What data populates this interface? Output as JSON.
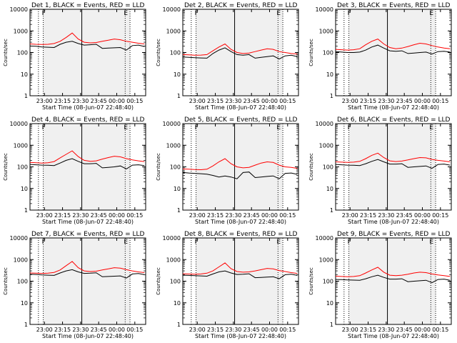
{
  "figure": {
    "time_labels": [
      "23:00",
      "23:15",
      "23:30",
      "23:45",
      "00:00",
      "00:15"
    ],
    "start_time_label": "Start Time (08-Jun-07 22:48:40)",
    "y_label": "Counts/sec",
    "y_ticks": [
      "1",
      "10",
      "100",
      "1000",
      "10000"
    ],
    "colors": {
      "events": "#000000",
      "lld": "#ff0000",
      "background": "#ffffff",
      "shading": "#f0f0f0"
    }
  },
  "chart_data": [
    {
      "type": "line",
      "title": "Det 1, BLACK = Events, RED = LLD",
      "yscale": "log",
      "ylim": [
        1,
        10000
      ],
      "x_minutes_after_start": [
        0,
        5,
        10,
        15,
        20,
        25,
        30,
        35,
        40,
        45,
        50,
        55,
        60,
        65,
        70,
        75,
        80,
        85,
        90,
        95
      ],
      "series": [
        {
          "name": "Events",
          "values": [
            200,
            195,
            180,
            175,
            170,
            240,
            300,
            330,
            260,
            220,
            230,
            240,
            155,
            160,
            165,
            170,
            130,
            210,
            220,
            190
          ]
        },
        {
          "name": "LLD",
          "values": [
            250,
            240,
            235,
            240,
            260,
            330,
            500,
            800,
            420,
            300,
            280,
            290,
            330,
            370,
            420,
            390,
            330,
            300,
            270,
            250
          ]
        }
      ],
      "markers": [
        {
          "x": 7,
          "style": "dotted"
        },
        {
          "x": 11,
          "style": "dotted",
          "label": "F"
        },
        {
          "x": 43,
          "style": "solid"
        },
        {
          "x": 79,
          "style": "dotted",
          "label": "E"
        },
        {
          "x": 83,
          "style": "dotted"
        }
      ]
    },
    {
      "type": "line",
      "title": "Det 2, BLACK = Events, RED = LLD",
      "yscale": "log",
      "ylim": [
        1,
        10000
      ],
      "x_minutes_after_start": [
        0,
        5,
        10,
        15,
        20,
        25,
        30,
        35,
        40,
        45,
        50,
        55,
        60,
        65,
        70,
        75,
        80,
        85,
        90,
        95
      ],
      "series": [
        {
          "name": "Events",
          "values": [
            62,
            60,
            58,
            56,
            55,
            90,
            130,
            165,
            110,
            80,
            75,
            80,
            55,
            60,
            65,
            70,
            50,
            70,
            75,
            65
          ]
        },
        {
          "name": "LLD",
          "values": [
            80,
            78,
            75,
            76,
            80,
            120,
            180,
            250,
            140,
            100,
            90,
            95,
            110,
            130,
            150,
            140,
            110,
            100,
            90,
            85
          ]
        }
      ],
      "markers": [
        {
          "x": 7,
          "style": "dotted"
        },
        {
          "x": 11,
          "style": "dotted",
          "label": "F"
        },
        {
          "x": 43,
          "style": "solid"
        },
        {
          "x": 79,
          "style": "dotted",
          "label": "E"
        },
        {
          "x": 83,
          "style": "dotted"
        }
      ]
    },
    {
      "type": "line",
      "title": "Det 3, BLACK = Events, RED = LLD",
      "yscale": "log",
      "ylim": [
        1,
        10000
      ],
      "x_minutes_after_start": [
        0,
        5,
        10,
        15,
        20,
        25,
        30,
        35,
        40,
        45,
        50,
        55,
        60,
        65,
        70,
        75,
        80,
        85,
        90,
        95
      ],
      "series": [
        {
          "name": "Events",
          "values": [
            110,
            105,
            100,
            100,
            105,
            130,
            180,
            220,
            160,
            120,
            115,
            120,
            90,
            95,
            100,
            105,
            85,
            110,
            115,
            105
          ]
        },
        {
          "name": "LLD",
          "values": [
            140,
            135,
            130,
            135,
            150,
            230,
            330,
            420,
            250,
            170,
            150,
            160,
            190,
            230,
            270,
            250,
            210,
            180,
            160,
            150
          ]
        }
      ],
      "markers": [
        {
          "x": 7,
          "style": "dotted"
        },
        {
          "x": 11,
          "style": "dotted",
          "label": "F"
        },
        {
          "x": 43,
          "style": "solid"
        },
        {
          "x": 79,
          "style": "dotted",
          "label": "E"
        },
        {
          "x": 83,
          "style": "dotted"
        }
      ]
    },
    {
      "type": "line",
      "title": "Det 4, BLACK = Events, RED = LLD",
      "yscale": "log",
      "ylim": [
        1,
        10000
      ],
      "x_minutes_after_start": [
        0,
        5,
        10,
        15,
        20,
        25,
        30,
        35,
        40,
        45,
        50,
        55,
        60,
        65,
        70,
        75,
        80,
        85,
        90,
        95
      ],
      "series": [
        {
          "name": "Events",
          "values": [
            130,
            125,
            120,
            118,
            115,
            150,
            200,
            240,
            180,
            140,
            140,
            145,
            90,
            95,
            100,
            110,
            80,
            120,
            125,
            115
          ]
        },
        {
          "name": "LLD",
          "values": [
            160,
            155,
            150,
            155,
            175,
            260,
            380,
            550,
            300,
            200,
            180,
            190,
            230,
            270,
            310,
            290,
            240,
            210,
            190,
            175
          ]
        }
      ],
      "markers": [
        {
          "x": 7,
          "style": "dotted"
        },
        {
          "x": 11,
          "style": "dotted",
          "label": "F"
        },
        {
          "x": 43,
          "style": "solid"
        },
        {
          "x": 79,
          "style": "dotted",
          "label": "E"
        },
        {
          "x": 83,
          "style": "dotted"
        }
      ]
    },
    {
      "type": "line",
      "title": "Det 5, BLACK = Events, RED = LLD",
      "yscale": "log",
      "ylim": [
        1,
        10000
      ],
      "x_minutes_after_start": [
        0,
        5,
        10,
        15,
        20,
        25,
        30,
        35,
        40,
        45,
        50,
        55,
        60,
        65,
        70,
        75,
        80,
        85,
        90,
        95
      ],
      "series": [
        {
          "name": "Events",
          "values": [
            55,
            52,
            50,
            48,
            46,
            40,
            34,
            38,
            34,
            28,
            55,
            58,
            32,
            34,
            36,
            38,
            28,
            50,
            52,
            45
          ]
        },
        {
          "name": "LLD",
          "values": [
            80,
            78,
            75,
            74,
            78,
            110,
            170,
            240,
            140,
            100,
            90,
            95,
            120,
            150,
            170,
            160,
            120,
            100,
            95,
            85
          ]
        }
      ],
      "markers": [
        {
          "x": 7,
          "style": "dotted"
        },
        {
          "x": 11,
          "style": "dotted",
          "label": "F"
        },
        {
          "x": 43,
          "style": "solid"
        },
        {
          "x": 79,
          "style": "dotted",
          "label": "E"
        },
        {
          "x": 83,
          "style": "dotted"
        }
      ]
    },
    {
      "type": "line",
      "title": "Det 6, BLACK = Events, RED = LLD",
      "yscale": "log",
      "ylim": [
        1,
        10000
      ],
      "x_minutes_after_start": [
        0,
        5,
        10,
        15,
        20,
        25,
        30,
        35,
        40,
        45,
        50,
        55,
        60,
        65,
        70,
        75,
        80,
        85,
        90,
        95
      ],
      "series": [
        {
          "name": "Events",
          "values": [
            130,
            125,
            120,
            118,
            115,
            140,
            180,
            220,
            170,
            135,
            135,
            140,
            95,
            100,
            105,
            110,
            85,
            130,
            135,
            120
          ]
        },
        {
          "name": "LLD",
          "values": [
            170,
            165,
            160,
            165,
            180,
            240,
            340,
            430,
            270,
            190,
            175,
            185,
            210,
            240,
            270,
            260,
            220,
            200,
            185,
            170
          ]
        }
      ],
      "markers": [
        {
          "x": 7,
          "style": "dotted"
        },
        {
          "x": 11,
          "style": "dotted",
          "label": "F"
        },
        {
          "x": 43,
          "style": "solid"
        },
        {
          "x": 79,
          "style": "dotted",
          "label": "E"
        },
        {
          "x": 83,
          "style": "dotted"
        }
      ]
    },
    {
      "type": "line",
      "title": "Det 7, BLACK = Events, RED = LLD",
      "yscale": "log",
      "ylim": [
        1,
        10000
      ],
      "x_minutes_after_start": [
        0,
        5,
        10,
        15,
        20,
        25,
        30,
        35,
        40,
        45,
        50,
        55,
        60,
        65,
        70,
        75,
        80,
        85,
        90,
        95
      ],
      "series": [
        {
          "name": "Events",
          "values": [
            210,
            205,
            195,
            190,
            185,
            240,
            300,
            340,
            270,
            230,
            235,
            245,
            160,
            165,
            170,
            175,
            140,
            215,
            225,
            200
          ]
        },
        {
          "name": "LLD",
          "values": [
            240,
            235,
            230,
            235,
            255,
            330,
            520,
            820,
            420,
            300,
            280,
            290,
            330,
            370,
            420,
            400,
            340,
            300,
            270,
            250
          ]
        }
      ],
      "markers": [
        {
          "x": 7,
          "style": "dotted"
        },
        {
          "x": 11,
          "style": "dotted",
          "label": "F"
        },
        {
          "x": 43,
          "style": "solid"
        },
        {
          "x": 79,
          "style": "dotted",
          "label": "E"
        },
        {
          "x": 83,
          "style": "dotted"
        }
      ]
    },
    {
      "type": "line",
      "title": "Det 8, BLACK = Events, RED = LLD",
      "yscale": "log",
      "ylim": [
        1,
        10000
      ],
      "x_minutes_after_start": [
        0,
        5,
        10,
        15,
        20,
        25,
        30,
        35,
        40,
        45,
        50,
        55,
        60,
        65,
        70,
        75,
        80,
        85,
        90,
        95
      ],
      "series": [
        {
          "name": "Events",
          "values": [
            190,
            185,
            180,
            175,
            170,
            215,
            270,
            300,
            240,
            205,
            210,
            220,
            145,
            150,
            155,
            160,
            130,
            200,
            210,
            185
          ]
        },
        {
          "name": "LLD",
          "values": [
            220,
            215,
            210,
            215,
            235,
            300,
            460,
            700,
            380,
            280,
            260,
            270,
            300,
            340,
            390,
            370,
            310,
            280,
            250,
            230
          ]
        }
      ],
      "markers": [
        {
          "x": 7,
          "style": "dotted"
        },
        {
          "x": 11,
          "style": "dotted",
          "label": "F"
        },
        {
          "x": 43,
          "style": "solid"
        },
        {
          "x": 79,
          "style": "dotted",
          "label": "E"
        },
        {
          "x": 83,
          "style": "dotted"
        }
      ]
    },
    {
      "type": "line",
      "title": "Det 9, BLACK = Events, RED = LLD",
      "yscale": "log",
      "ylim": [
        1,
        10000
      ],
      "x_minutes_after_start": [
        0,
        5,
        10,
        15,
        20,
        25,
        30,
        35,
        40,
        45,
        50,
        55,
        60,
        65,
        70,
        75,
        80,
        85,
        90,
        95
      ],
      "series": [
        {
          "name": "Events",
          "values": [
            120,
            118,
            115,
            112,
            110,
            130,
            160,
            190,
            150,
            125,
            125,
            130,
            95,
            100,
            105,
            110,
            85,
            120,
            125,
            110
          ]
        },
        {
          "name": "LLD",
          "values": [
            170,
            165,
            160,
            165,
            180,
            240,
            330,
            440,
            260,
            190,
            180,
            190,
            210,
            240,
            260,
            250,
            215,
            195,
            180,
            165
          ]
        }
      ],
      "markers": [
        {
          "x": 7,
          "style": "dotted"
        },
        {
          "x": 11,
          "style": "dotted",
          "label": "F"
        },
        {
          "x": 43,
          "style": "solid"
        },
        {
          "x": 79,
          "style": "dotted",
          "label": "E"
        },
        {
          "x": 83,
          "style": "dotted"
        }
      ]
    }
  ]
}
